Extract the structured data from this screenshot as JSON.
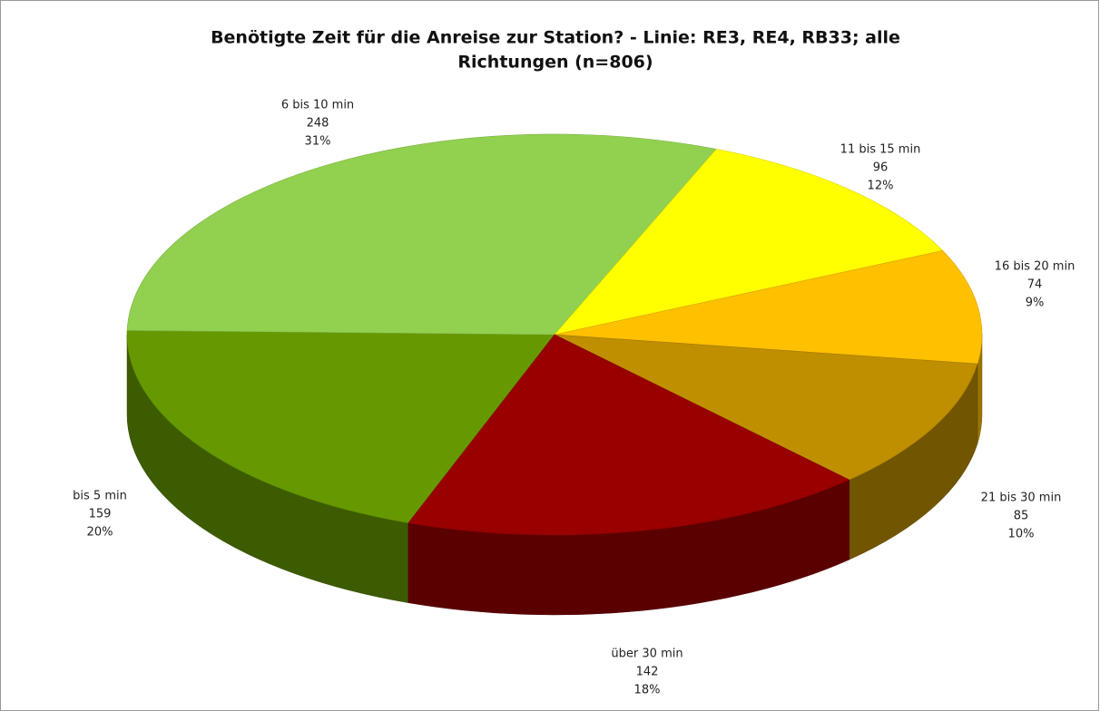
{
  "chart_data": {
    "type": "pie3d",
    "title": [
      "Benötigte Zeit für die Anreise zur Station? - Linie: RE3, RE4, RB33; alle",
      "Richtungen (n=806)"
    ],
    "categories": [
      "bis 5 min",
      "6 bis 10 min",
      "11 bis 15 min",
      "16 bis 20 min",
      "21 bis 30 min",
      "über 30 min"
    ],
    "values": [
      159,
      248,
      96,
      74,
      85,
      142
    ],
    "value_labels": [
      "20%",
      "31%",
      "12%",
      "9%",
      "10%",
      "18%"
    ],
    "colors": [
      "#669900",
      "#92d050",
      "#ffff00",
      "#ffc000",
      "#bf8f00",
      "#990000"
    ]
  }
}
